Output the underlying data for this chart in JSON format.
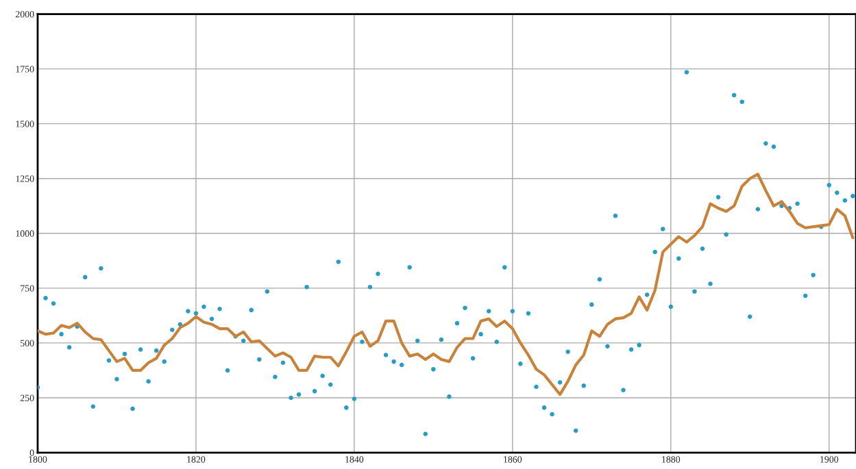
{
  "chart_data": {
    "type": "scatter",
    "x": [
      1800,
      1801,
      1802,
      1803,
      1804,
      1805,
      1806,
      1807,
      1808,
      1809,
      1810,
      1811,
      1812,
      1813,
      1814,
      1815,
      1816,
      1817,
      1818,
      1819,
      1820,
      1821,
      1822,
      1823,
      1824,
      1825,
      1826,
      1827,
      1828,
      1829,
      1830,
      1831,
      1832,
      1833,
      1834,
      1835,
      1836,
      1837,
      1838,
      1839,
      1840,
      1841,
      1842,
      1843,
      1844,
      1845,
      1846,
      1847,
      1848,
      1849,
      1850,
      1851,
      1852,
      1853,
      1854,
      1855,
      1856,
      1857,
      1858,
      1859,
      1860,
      1861,
      1862,
      1863,
      1864,
      1865,
      1866,
      1867,
      1868,
      1869,
      1870,
      1871,
      1872,
      1873,
      1874,
      1875,
      1876,
      1877,
      1878,
      1879,
      1880,
      1881,
      1882,
      1883,
      1884,
      1885,
      1886,
      1887,
      1888,
      1889,
      1890,
      1891,
      1892,
      1893,
      1894,
      1895,
      1896,
      1897,
      1898,
      1899,
      1900,
      1901,
      1902,
      1903
    ],
    "series": [
      {
        "color": "#2a9cc4",
        "marker": "circle",
        "values": [
          297,
          705,
          680,
          540,
          480,
          575,
          800,
          210,
          840,
          420,
          335,
          450,
          200,
          470,
          325,
          465,
          415,
          560,
          585,
          645,
          635,
          665,
          610,
          655,
          375,
          530,
          510,
          650,
          425,
          735,
          345,
          410,
          250,
          265,
          755,
          280,
          350,
          310,
          870,
          205,
          245,
          505,
          755,
          815,
          445,
          415,
          400,
          845,
          510,
          85,
          380,
          515,
          255,
          590,
          660,
          430,
          540,
          645,
          505,
          845,
          645,
          405,
          635,
          300,
          205,
          175,
          320,
          460,
          100,
          305,
          675,
          790,
          485,
          1080,
          285,
          470,
          490,
          720,
          915,
          1020,
          665,
          885,
          1735,
          735,
          930,
          770,
          1165,
          995,
          1630,
          1600,
          620,
          1110,
          1410,
          1395,
          1125,
          1115,
          1135,
          715,
          810,
          1030,
          1220,
          1185,
          1150,
          1170
        ]
      },
      {
        "type": "line",
        "color": "#c8823a",
        "marker": "none",
        "line_style": "solid",
        "values": [
          555,
          540,
          545,
          580,
          570,
          590,
          550,
          520,
          515,
          465,
          415,
          430,
          375,
          375,
          410,
          430,
          490,
          520,
          570,
          590,
          620,
          595,
          585,
          565,
          565,
          530,
          550,
          505,
          510,
          475,
          440,
          455,
          435,
          375,
          375,
          440,
          435,
          435,
          395,
          460,
          530,
          550,
          485,
          510,
          600,
          600,
          500,
          440,
          450,
          425,
          450,
          425,
          415,
          480,
          520,
          520,
          600,
          610,
          575,
          600,
          565,
          500,
          445,
          380,
          355,
          310,
          265,
          325,
          400,
          445,
          555,
          530,
          585,
          610,
          615,
          635,
          710,
          650,
          740,
          915,
          950,
          985,
          960,
          990,
          1030,
          1135,
          1115,
          1100,
          1125,
          1215,
          1250,
          1270,
          1195,
          1125,
          1145,
          1100,
          1045,
          1025,
          1030,
          1035,
          1040,
          1110,
          1080,
          980
        ]
      }
    ],
    "xlim": [
      1800,
      1903.4
    ],
    "ylim": [
      0,
      2000
    ],
    "xticks": [
      1800,
      1820,
      1840,
      1860,
      1880,
      1900
    ],
    "yticks": [
      0,
      250,
      500,
      750,
      1000,
      1250,
      1500,
      1750,
      2000
    ],
    "grid": true,
    "legend": false
  }
}
